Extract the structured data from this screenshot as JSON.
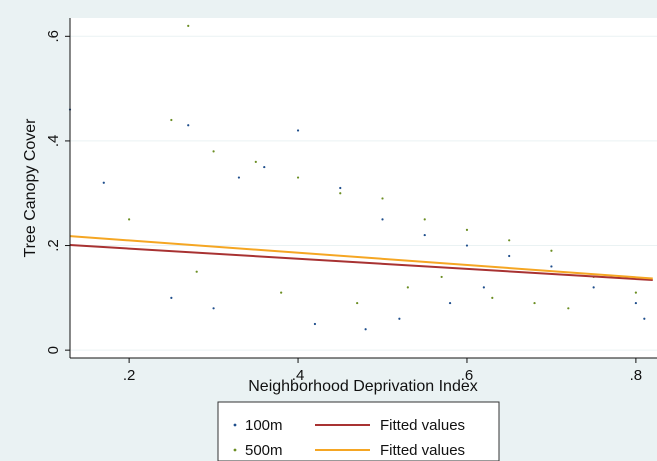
{
  "chart_data": {
    "type": "scatter",
    "title": "",
    "xlabel": "Neighborhood Deprivation Index",
    "ylabel": "Tree Canopy Cover",
    "xlim": [
      0.13,
      0.825
    ],
    "ylim": [
      -0.015,
      0.635
    ],
    "x_ticks": [
      {
        "value": 0.2,
        "label": ".2"
      },
      {
        "value": 0.4,
        "label": ".4"
      },
      {
        "value": 0.6,
        "label": ".6"
      },
      {
        "value": 0.8,
        "label": ".8"
      }
    ],
    "y_ticks": [
      {
        "value": 0,
        "label": "0"
      },
      {
        "value": 0.2,
        "label": ".2"
      },
      {
        "value": 0.4,
        "label": ".4"
      },
      {
        "value": 0.6,
        "label": ".6"
      }
    ],
    "grid": "horizontal",
    "legend_position": "bottom",
    "colors": {
      "series_100m": "#1f4e8c",
      "series_500m": "#6b8e23",
      "fit_100m": "#a83232",
      "fit_500m": "#f5a623",
      "plot_region": "#ffffff",
      "graph_region": "#eaf2f3",
      "gridline": "#eaf2f3"
    },
    "series": [
      {
        "name": "100m",
        "kind": "points",
        "points": [
          [
            0.27,
            0.43
          ],
          [
            0.33,
            0.33
          ],
          [
            0.36,
            0.35
          ],
          [
            0.4,
            0.42
          ],
          [
            0.45,
            0.31
          ],
          [
            0.5,
            0.25
          ],
          [
            0.55,
            0.22
          ],
          [
            0.6,
            0.2
          ],
          [
            0.65,
            0.18
          ],
          [
            0.7,
            0.16
          ],
          [
            0.75,
            0.12
          ],
          [
            0.8,
            0.09
          ],
          [
            0.81,
            0.06
          ],
          [
            0.25,
            0.1
          ],
          [
            0.3,
            0.08
          ],
          [
            0.42,
            0.05
          ],
          [
            0.48,
            0.04
          ],
          [
            0.52,
            0.06
          ],
          [
            0.58,
            0.09
          ],
          [
            0.62,
            0.12
          ],
          [
            0.17,
            0.32
          ],
          [
            0.13,
            0.46
          ]
        ]
      },
      {
        "name": "500m",
        "kind": "points",
        "points": [
          [
            0.25,
            0.44
          ],
          [
            0.3,
            0.38
          ],
          [
            0.35,
            0.36
          ],
          [
            0.4,
            0.33
          ],
          [
            0.45,
            0.3
          ],
          [
            0.5,
            0.29
          ],
          [
            0.55,
            0.25
          ],
          [
            0.6,
            0.23
          ],
          [
            0.65,
            0.21
          ],
          [
            0.7,
            0.19
          ],
          [
            0.75,
            0.14
          ],
          [
            0.8,
            0.11
          ],
          [
            0.28,
            0.15
          ],
          [
            0.38,
            0.11
          ],
          [
            0.47,
            0.09
          ],
          [
            0.53,
            0.12
          ],
          [
            0.57,
            0.14
          ],
          [
            0.63,
            0.1
          ],
          [
            0.68,
            0.09
          ],
          [
            0.72,
            0.08
          ],
          [
            0.2,
            0.25
          ],
          [
            0.27,
            0.62
          ]
        ]
      },
      {
        "name": "Fitted values",
        "kind": "line",
        "x": [
          0.13,
          0.82
        ],
        "y": [
          0.201,
          0.134
        ]
      },
      {
        "name": "Fitted values",
        "kind": "line",
        "x": [
          0.13,
          0.82
        ],
        "y": [
          0.218,
          0.137
        ]
      }
    ],
    "legend": [
      {
        "marker": "dot",
        "series": 0,
        "label": "100m"
      },
      {
        "marker": "line",
        "series": 2,
        "label": "Fitted values"
      },
      {
        "marker": "dot",
        "series": 1,
        "label": "500m"
      },
      {
        "marker": "line",
        "series": 3,
        "label": "Fitted values"
      }
    ]
  }
}
